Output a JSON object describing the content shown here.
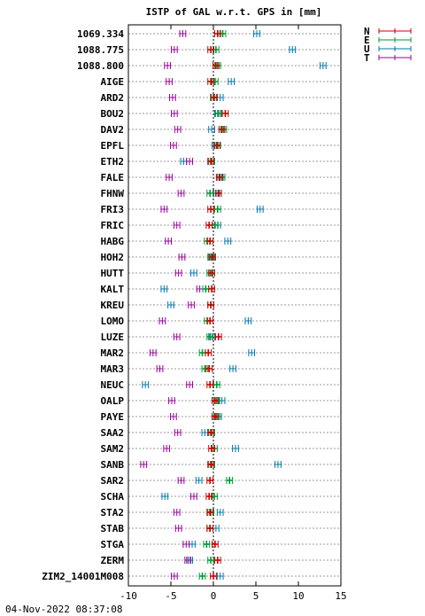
{
  "footer": {
    "timestamp": "04-Nov-2022 08:37:08"
  },
  "chart_data": {
    "type": "errorbar",
    "title": "ISTP of GAL w.r.t. GPS in [mm]",
    "xlabel": "",
    "ylabel": "",
    "xlim": [
      -10,
      15
    ],
    "xticks": [
      -10,
      -5,
      0,
      5,
      10,
      15
    ],
    "grid": "horizontal dotted",
    "legend": {
      "placement": "top-right outside",
      "entries": [
        "N",
        "E",
        "U",
        "T"
      ]
    },
    "error_half_width": 0.35,
    "series": [
      {
        "name": "N",
        "color": "#cc0000",
        "values": [
          0.5,
          -0.3,
          0.3,
          -0.3,
          0.1,
          1.4,
          1.0,
          0.4,
          -0.3,
          0.7,
          0.6,
          -0.3,
          -0.5,
          -0.4,
          -0.1,
          -0.2,
          -0.2,
          -0.3,
          -0.4,
          0.6,
          -0.6,
          -0.5,
          -0.4,
          0.2,
          0.2,
          -0.3,
          -0.2,
          -0.3,
          -0.4,
          -0.5,
          -0.4,
          -0.4,
          0.2,
          0.5,
          0.0
        ]
      },
      {
        "name": "E",
        "color": "#009933",
        "values": [
          1.1,
          0.3,
          0.5,
          0.2,
          0.0,
          0.6,
          1.2,
          0.5,
          -0.2,
          1.0,
          -0.4,
          0.5,
          0.2,
          -0.7,
          -0.3,
          -0.4,
          -0.9,
          -0.3,
          -0.7,
          -0.4,
          -1.3,
          -1.0,
          0.4,
          0.4,
          0.4,
          -0.2,
          0.1,
          -0.2,
          1.9,
          0.1,
          -0.3,
          -0.4,
          -0.8,
          -0.3,
          -1.3
        ]
      },
      {
        "name": "U",
        "color": "#0077aa",
        "values": [
          5.1,
          9.3,
          12.9,
          2.1,
          0.8,
          0.5,
          -0.2,
          0.2,
          -3.5,
          0.8,
          0.4,
          5.5,
          0.5,
          1.7,
          -0.2,
          -2.3,
          -5.8,
          -5.0,
          4.1,
          -0.2,
          4.5,
          2.3,
          -8.0,
          1.0,
          0.6,
          -1.0,
          2.6,
          7.6,
          -1.7,
          -5.7,
          0.8,
          0.3,
          -2.5,
          -2.8,
          0.8
        ]
      },
      {
        "name": "T",
        "color": "#990099",
        "values": [
          -3.6,
          -4.6,
          -5.4,
          -5.2,
          -4.8,
          -4.6,
          -4.2,
          -4.7,
          -2.8,
          -5.2,
          -3.8,
          -5.8,
          -4.3,
          -5.3,
          -3.7,
          -4.1,
          -1.6,
          -2.6,
          -6.0,
          -4.3,
          -7.1,
          -6.3,
          -2.8,
          -4.9,
          -4.7,
          -4.2,
          -5.5,
          -8.2,
          -3.8,
          -2.3,
          -4.3,
          -4.1,
          -3.2,
          -3.0,
          -4.6
        ]
      }
    ],
    "stations": [
      "1069.334",
      "1088.775",
      "1088.800",
      "AIGE",
      "ARD2",
      "BOU2",
      "DAV2",
      "EPFL",
      "ETH2",
      "FALE",
      "FHNW",
      "FRI3",
      "FRIC",
      "HABG",
      "HOH2",
      "HUTT",
      "KALT",
      "KREU",
      "LOMO",
      "LUZE",
      "MAR2",
      "MAR3",
      "NEUC",
      "OALP",
      "PAYE",
      "SAA2",
      "SAM2",
      "SANB",
      "SAR2",
      "SCHA",
      "STA2",
      "STAB",
      "STGA",
      "ZERM",
      "ZIM2_14001M008"
    ]
  }
}
